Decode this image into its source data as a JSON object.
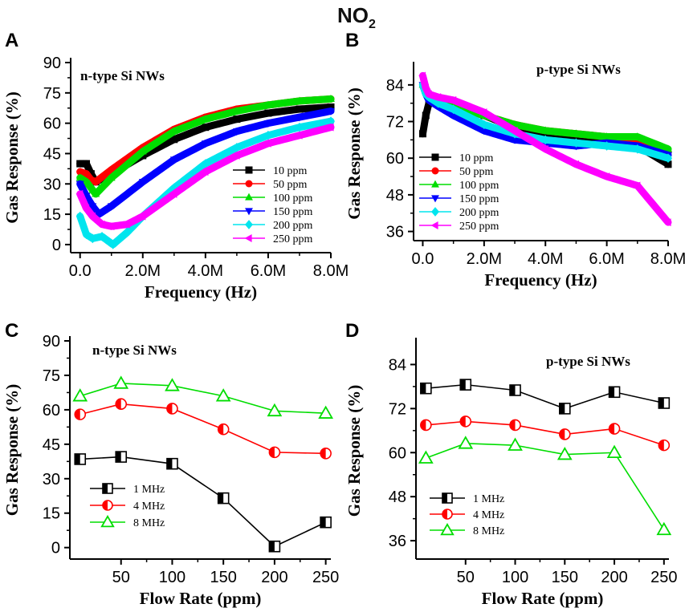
{
  "figure_title": {
    "main": "NO",
    "subscript": "2"
  },
  "chart_data": [
    {
      "id": "A",
      "type": "line",
      "panel_label": "A",
      "title": "n-type Si NWs",
      "xlabel": "Frequency (Hz)",
      "ylabel": "Gas Response (%)",
      "xlim": [
        -0.3,
        8.0
      ],
      "ylim": [
        -4,
        90
      ],
      "x_ticks": [
        0,
        2,
        4,
        6,
        8
      ],
      "x_tick_labels": [
        "0.0",
        "2.0M",
        "4.0M",
        "6.0M",
        "8.0M"
      ],
      "y_ticks": [
        0,
        15,
        30,
        45,
        60,
        75,
        90
      ],
      "y_tick_labels": [
        "0",
        "15",
        "30",
        "45",
        "60",
        "75",
        "90"
      ],
      "legend_position": "middle-right",
      "series": [
        {
          "name": "10 ppm",
          "color": "#000000",
          "marker": "square",
          "x": [
            0,
            0.2,
            0.35,
            0.5,
            1,
            2,
            3,
            4,
            5,
            6,
            7,
            8
          ],
          "y": [
            40,
            40,
            35,
            31,
            35,
            44,
            52,
            58,
            62,
            65,
            67,
            68
          ]
        },
        {
          "name": "50 ppm",
          "color": "#ff0000",
          "marker": "circle",
          "x": [
            0,
            0.2,
            0.35,
            0.5,
            1,
            2,
            3,
            4,
            5,
            6,
            7,
            8
          ],
          "y": [
            36,
            35,
            32,
            31,
            37,
            48,
            57,
            63,
            67,
            69,
            71,
            72
          ]
        },
        {
          "name": "100 ppm",
          "color": "#00dd00",
          "marker": "triangle-up",
          "x": [
            0,
            0.2,
            0.4,
            0.5,
            1,
            2,
            3,
            4,
            5,
            6,
            7,
            8
          ],
          "y": [
            33,
            31,
            27,
            25,
            33,
            46,
            56,
            62,
            66,
            69,
            71,
            72
          ]
        },
        {
          "name": "150 ppm",
          "color": "#0000ff",
          "marker": "triangle-down",
          "x": [
            0,
            0.2,
            0.4,
            0.6,
            1,
            2,
            3,
            4,
            5,
            6,
            7,
            8
          ],
          "y": [
            30,
            24,
            19,
            15,
            19,
            31,
            42,
            50,
            56,
            60,
            63,
            66
          ]
        },
        {
          "name": "200 ppm",
          "color": "#00e5ee",
          "marker": "diamond",
          "x": [
            0,
            0.2,
            0.4,
            0.7,
            1.05,
            1.5,
            2,
            3,
            4,
            5,
            6,
            7,
            8
          ],
          "y": [
            14,
            5,
            3,
            4,
            0,
            6,
            14,
            28,
            40,
            48,
            54,
            58,
            61
          ]
        },
        {
          "name": "250 ppm",
          "color": "#ff00ff",
          "marker": "triangle-left",
          "x": [
            0,
            0.2,
            0.4,
            0.7,
            1,
            1.5,
            2,
            3,
            4,
            5,
            6,
            7,
            8
          ],
          "y": [
            25,
            18,
            14,
            10,
            9,
            10,
            14,
            25,
            36,
            44,
            50,
            54,
            58
          ]
        }
      ]
    },
    {
      "id": "B",
      "type": "line",
      "panel_label": "B",
      "title": "p-type Si NWs",
      "xlabel": "Frequency (Hz)",
      "ylabel": "Gas Response (%)",
      "xlim": [
        -0.3,
        8.0
      ],
      "ylim": [
        33,
        90
      ],
      "x_ticks": [
        0,
        2,
        4,
        6,
        8
      ],
      "x_tick_labels": [
        "0.0",
        "2.0M",
        "4.0M",
        "6.0M",
        "8.0M"
      ],
      "y_ticks": [
        36,
        48,
        60,
        72,
        84
      ],
      "y_tick_labels": [
        "36",
        "48",
        "60",
        "72",
        "84"
      ],
      "legend_position": "bottom-left",
      "series": [
        {
          "name": "10 ppm",
          "color": "#000000",
          "marker": "square",
          "x": [
            0,
            0.1,
            0.2,
            0.5,
            1,
            2,
            3,
            4,
            5,
            6,
            7,
            8
          ],
          "y": [
            68,
            74,
            78,
            79,
            77,
            74,
            70,
            68,
            67,
            66,
            64,
            58
          ]
        },
        {
          "name": "50 ppm",
          "color": "#ff0000",
          "marker": "circle",
          "x": [
            0,
            0.1,
            0.2,
            0.5,
            1,
            2,
            3,
            4,
            5,
            6,
            7,
            8
          ],
          "y": [
            84,
            82,
            80,
            79,
            77,
            74,
            71,
            69,
            68,
            67,
            66,
            62
          ]
        },
        {
          "name": "100 ppm",
          "color": "#00dd00",
          "marker": "triangle-up",
          "x": [
            0,
            0.1,
            0.2,
            0.5,
            1,
            2,
            3,
            4,
            5,
            6,
            7,
            8
          ],
          "y": [
            84,
            82,
            80,
            79,
            77,
            74,
            71,
            69,
            68,
            67,
            67,
            63
          ]
        },
        {
          "name": "150 ppm",
          "color": "#0000ff",
          "marker": "triangle-down",
          "x": [
            0,
            0.1,
            0.2,
            0.5,
            1,
            2,
            3,
            4,
            5,
            6,
            7,
            8
          ],
          "y": [
            84,
            81,
            79,
            77,
            74,
            69,
            66,
            65,
            64,
            65,
            64,
            61
          ]
        },
        {
          "name": "200 ppm",
          "color": "#00e5ee",
          "marker": "diamond",
          "x": [
            0,
            0.1,
            0.2,
            0.5,
            1,
            2,
            3,
            4,
            5,
            6,
            7,
            8
          ],
          "y": [
            84,
            81,
            80,
            78,
            76,
            71,
            68,
            66,
            65,
            64,
            63,
            60
          ]
        },
        {
          "name": "250 ppm",
          "color": "#ff00ff",
          "marker": "triangle-left",
          "x": [
            0,
            0.1,
            0.2,
            0.5,
            1,
            2,
            3,
            4,
            5,
            6,
            7,
            8
          ],
          "y": [
            87,
            83,
            81,
            80,
            79,
            75,
            69,
            63,
            58,
            54,
            51,
            39
          ]
        }
      ]
    },
    {
      "id": "C",
      "type": "line",
      "panel_label": "C",
      "title": "n-type Si NWs",
      "xlabel": "Flow Rate (ppm)",
      "ylabel": "Gas Response (%)",
      "xlim": [
        0,
        255
      ],
      "ylim": [
        -5,
        90
      ],
      "x_ticks": [
        50,
        100,
        150,
        200,
        250
      ],
      "x_tick_labels": [
        "50",
        "100",
        "150",
        "200",
        "250"
      ],
      "y_ticks": [
        0,
        15,
        30,
        45,
        60,
        75,
        90
      ],
      "y_tick_labels": [
        "0",
        "15",
        "30",
        "45",
        "60",
        "75",
        "90"
      ],
      "legend_position": "bottom-left",
      "categories": [
        10,
        50,
        100,
        150,
        200,
        250
      ],
      "series": [
        {
          "name": "1 MHz",
          "color": "#000000",
          "marker": "half-square",
          "values": [
            38.5,
            39.5,
            36.5,
            21.5,
            0.5,
            11
          ]
        },
        {
          "name": "4 MHz",
          "color": "#ff0000",
          "marker": "half-circle",
          "values": [
            58,
            62.5,
            60.5,
            51.5,
            41.5,
            41
          ]
        },
        {
          "name": "8 MHz",
          "color": "#00dd00",
          "marker": "open-triangle",
          "values": [
            66,
            71.5,
            70.5,
            66,
            59.5,
            58.5
          ]
        }
      ]
    },
    {
      "id": "D",
      "type": "line",
      "panel_label": "D",
      "title": "p-type Si NWs",
      "xlabel": "Flow Rate (ppm)",
      "ylabel": "Gas Response (%)",
      "xlim": [
        0,
        255
      ],
      "ylim": [
        31,
        90
      ],
      "x_ticks": [
        50,
        100,
        150,
        200,
        250
      ],
      "x_tick_labels": [
        "50",
        "100",
        "150",
        "200",
        "250"
      ],
      "y_ticks": [
        36,
        48,
        60,
        72,
        84
      ],
      "y_tick_labels": [
        "36",
        "48",
        "60",
        "72",
        "84"
      ],
      "legend_position": "bottom-left",
      "categories": [
        10,
        50,
        100,
        150,
        200,
        250
      ],
      "series": [
        {
          "name": "1 MHz",
          "color": "#000000",
          "marker": "half-square",
          "values": [
            77.5,
            78.5,
            77,
            72,
            76.5,
            73.5
          ]
        },
        {
          "name": "4 MHz",
          "color": "#ff0000",
          "marker": "half-circle",
          "values": [
            67.5,
            68.5,
            67.5,
            65,
            66.5,
            62
          ]
        },
        {
          "name": "8 MHz",
          "color": "#00dd00",
          "marker": "open-triangle",
          "values": [
            58.5,
            62.5,
            62,
            59.5,
            60,
            39
          ]
        }
      ]
    }
  ]
}
